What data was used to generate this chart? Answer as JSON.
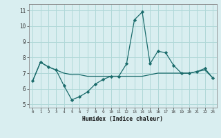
{
  "xlabel": "Humidex (Indice chaleur)",
  "ylabel": "",
  "background_color": "#d9eef0",
  "grid_color": "#b0d8d8",
  "line_color": "#1a6b6b",
  "xlim": [
    -0.5,
    23.5
  ],
  "ylim": [
    4.8,
    11.4
  ],
  "yticks": [
    5,
    6,
    7,
    8,
    9,
    10,
    11
  ],
  "xticks": [
    0,
    1,
    2,
    3,
    4,
    5,
    6,
    7,
    8,
    9,
    10,
    11,
    12,
    13,
    14,
    15,
    16,
    17,
    18,
    19,
    20,
    21,
    22,
    23
  ],
  "series1_x": [
    0,
    1,
    2,
    3,
    4,
    5,
    6,
    7,
    8,
    9,
    10,
    11,
    12,
    13,
    14,
    15,
    16,
    17,
    18,
    19,
    20,
    21,
    22,
    23
  ],
  "series1_y": [
    6.5,
    7.7,
    7.4,
    7.2,
    6.2,
    5.3,
    5.5,
    5.8,
    6.3,
    6.6,
    6.8,
    6.8,
    7.6,
    10.4,
    10.9,
    7.6,
    8.4,
    8.3,
    7.5,
    7.0,
    7.0,
    7.1,
    7.3,
    6.7
  ],
  "series2_x": [
    0,
    1,
    2,
    3,
    4,
    5,
    6,
    7,
    8,
    9,
    10,
    11,
    12,
    13,
    14,
    15,
    16,
    17,
    18,
    19,
    20,
    21,
    22,
    23
  ],
  "series2_y": [
    6.5,
    7.7,
    7.4,
    7.2,
    7.0,
    6.9,
    6.9,
    6.8,
    6.8,
    6.8,
    6.8,
    6.8,
    6.8,
    6.8,
    6.8,
    6.9,
    7.0,
    7.0,
    7.0,
    7.0,
    7.0,
    7.1,
    7.2,
    6.7
  ],
  "figsize": [
    3.2,
    2.0
  ],
  "dpi": 100
}
